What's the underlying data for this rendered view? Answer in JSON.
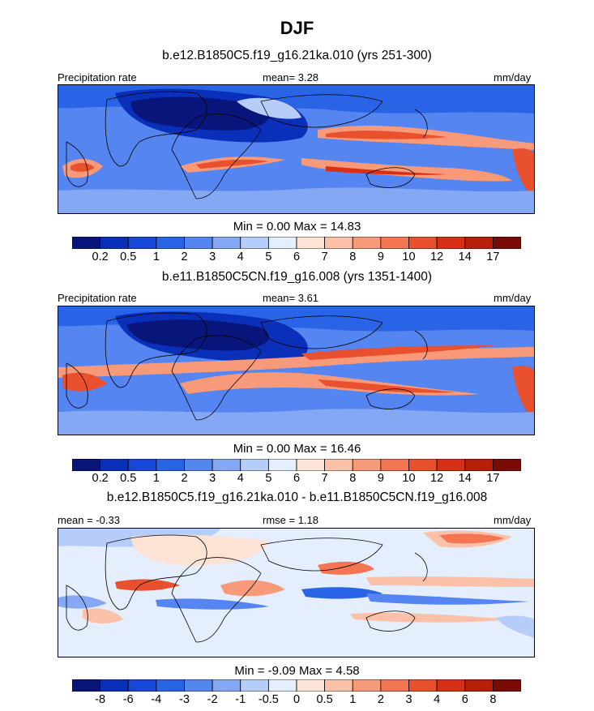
{
  "header": {
    "title": "DJF"
  },
  "panels": [
    {
      "id": "panel1",
      "subtitle": "b.e12.B1850C5.f19_g16.21ka.010 (yrs 251-300)",
      "left_label": "Precipitation rate",
      "center_label": "mean=   3.28",
      "right_label": "mm/day",
      "minmax": "Min =   0.00 Max =  14.83"
    },
    {
      "id": "panel2",
      "subtitle": "b.e11.B1850C5CN.f19_g16.008 (yrs 1351-1400)",
      "left_label": "Precipitation rate",
      "center_label": "mean=   3.61",
      "right_label": "mm/day",
      "minmax": "Min =   0.00 Max =  16.46"
    },
    {
      "id": "panel3",
      "subtitle": "b.e12.B1850C5.f19_g16.21ka.010 - b.e11.B1850C5CN.f19_g16.008",
      "left_label": "mean =  -0.33",
      "center_label": "rmse =   1.18",
      "right_label": "mm/day",
      "minmax": "Min =  -9.09 Max =   4.58"
    }
  ],
  "colorbars": {
    "precip": {
      "colors": [
        "#08157a",
        "#0a2fb8",
        "#1746d8",
        "#2a64e6",
        "#5585f0",
        "#85a8f5",
        "#b6cdfa",
        "#e4eefc",
        "#fde3d6",
        "#fbc1a8",
        "#f89a7a",
        "#f37552",
        "#e8502e",
        "#d83016",
        "#b81e0a",
        "#7a0a06"
      ],
      "ticks": [
        "0.2",
        "0.5",
        "1",
        "2",
        "3",
        "4",
        "5",
        "6",
        "7",
        "8",
        "9",
        "10",
        "12",
        "14",
        "17"
      ]
    },
    "diff": {
      "colors": [
        "#08157a",
        "#0a2fb8",
        "#1746d8",
        "#2a64e6",
        "#5585f0",
        "#85a8f5",
        "#b6cdfa",
        "#e4eefc",
        "#fde3d6",
        "#fbc1a8",
        "#f89a7a",
        "#f37552",
        "#e8502e",
        "#d83016",
        "#b81e0a",
        "#7a0a06"
      ],
      "ticks": [
        "-8",
        "-6",
        "-4",
        "-3",
        "-2",
        "-1",
        "-0.5",
        "0",
        "0.5",
        "1",
        "2",
        "3",
        "4",
        "6",
        "8"
      ]
    }
  },
  "chart_data": [
    {
      "type": "heatmap",
      "title": "DJF",
      "subtitle": "b.e12.B1850C5.f19_g16.21ka.010 (yrs 251-300)",
      "variable": "Precipitation rate",
      "units": "mm/day",
      "mean": 3.28,
      "min": 0.0,
      "max": 14.83,
      "contour_levels": [
        0.2,
        0.5,
        1,
        2,
        3,
        4,
        5,
        6,
        7,
        8,
        9,
        10,
        12,
        14,
        17
      ]
    },
    {
      "type": "heatmap",
      "title": "DJF",
      "subtitle": "b.e11.B1850C5CN.f19_g16.008 (yrs 1351-1400)",
      "variable": "Precipitation rate",
      "units": "mm/day",
      "mean": 3.61,
      "min": 0.0,
      "max": 16.46,
      "contour_levels": [
        0.2,
        0.5,
        1,
        2,
        3,
        4,
        5,
        6,
        7,
        8,
        9,
        10,
        12,
        14,
        17
      ]
    },
    {
      "type": "heatmap",
      "title": "DJF",
      "subtitle": "b.e12.B1850C5.f19_g16.21ka.010 - b.e11.B1850C5CN.f19_g16.008",
      "units": "mm/day",
      "mean": -0.33,
      "rmse": 1.18,
      "min": -9.09,
      "max": 4.58,
      "contour_levels": [
        -8,
        -6,
        -4,
        -3,
        -2,
        -1,
        -0.5,
        0,
        0.5,
        1,
        2,
        3,
        4,
        6,
        8
      ]
    }
  ]
}
